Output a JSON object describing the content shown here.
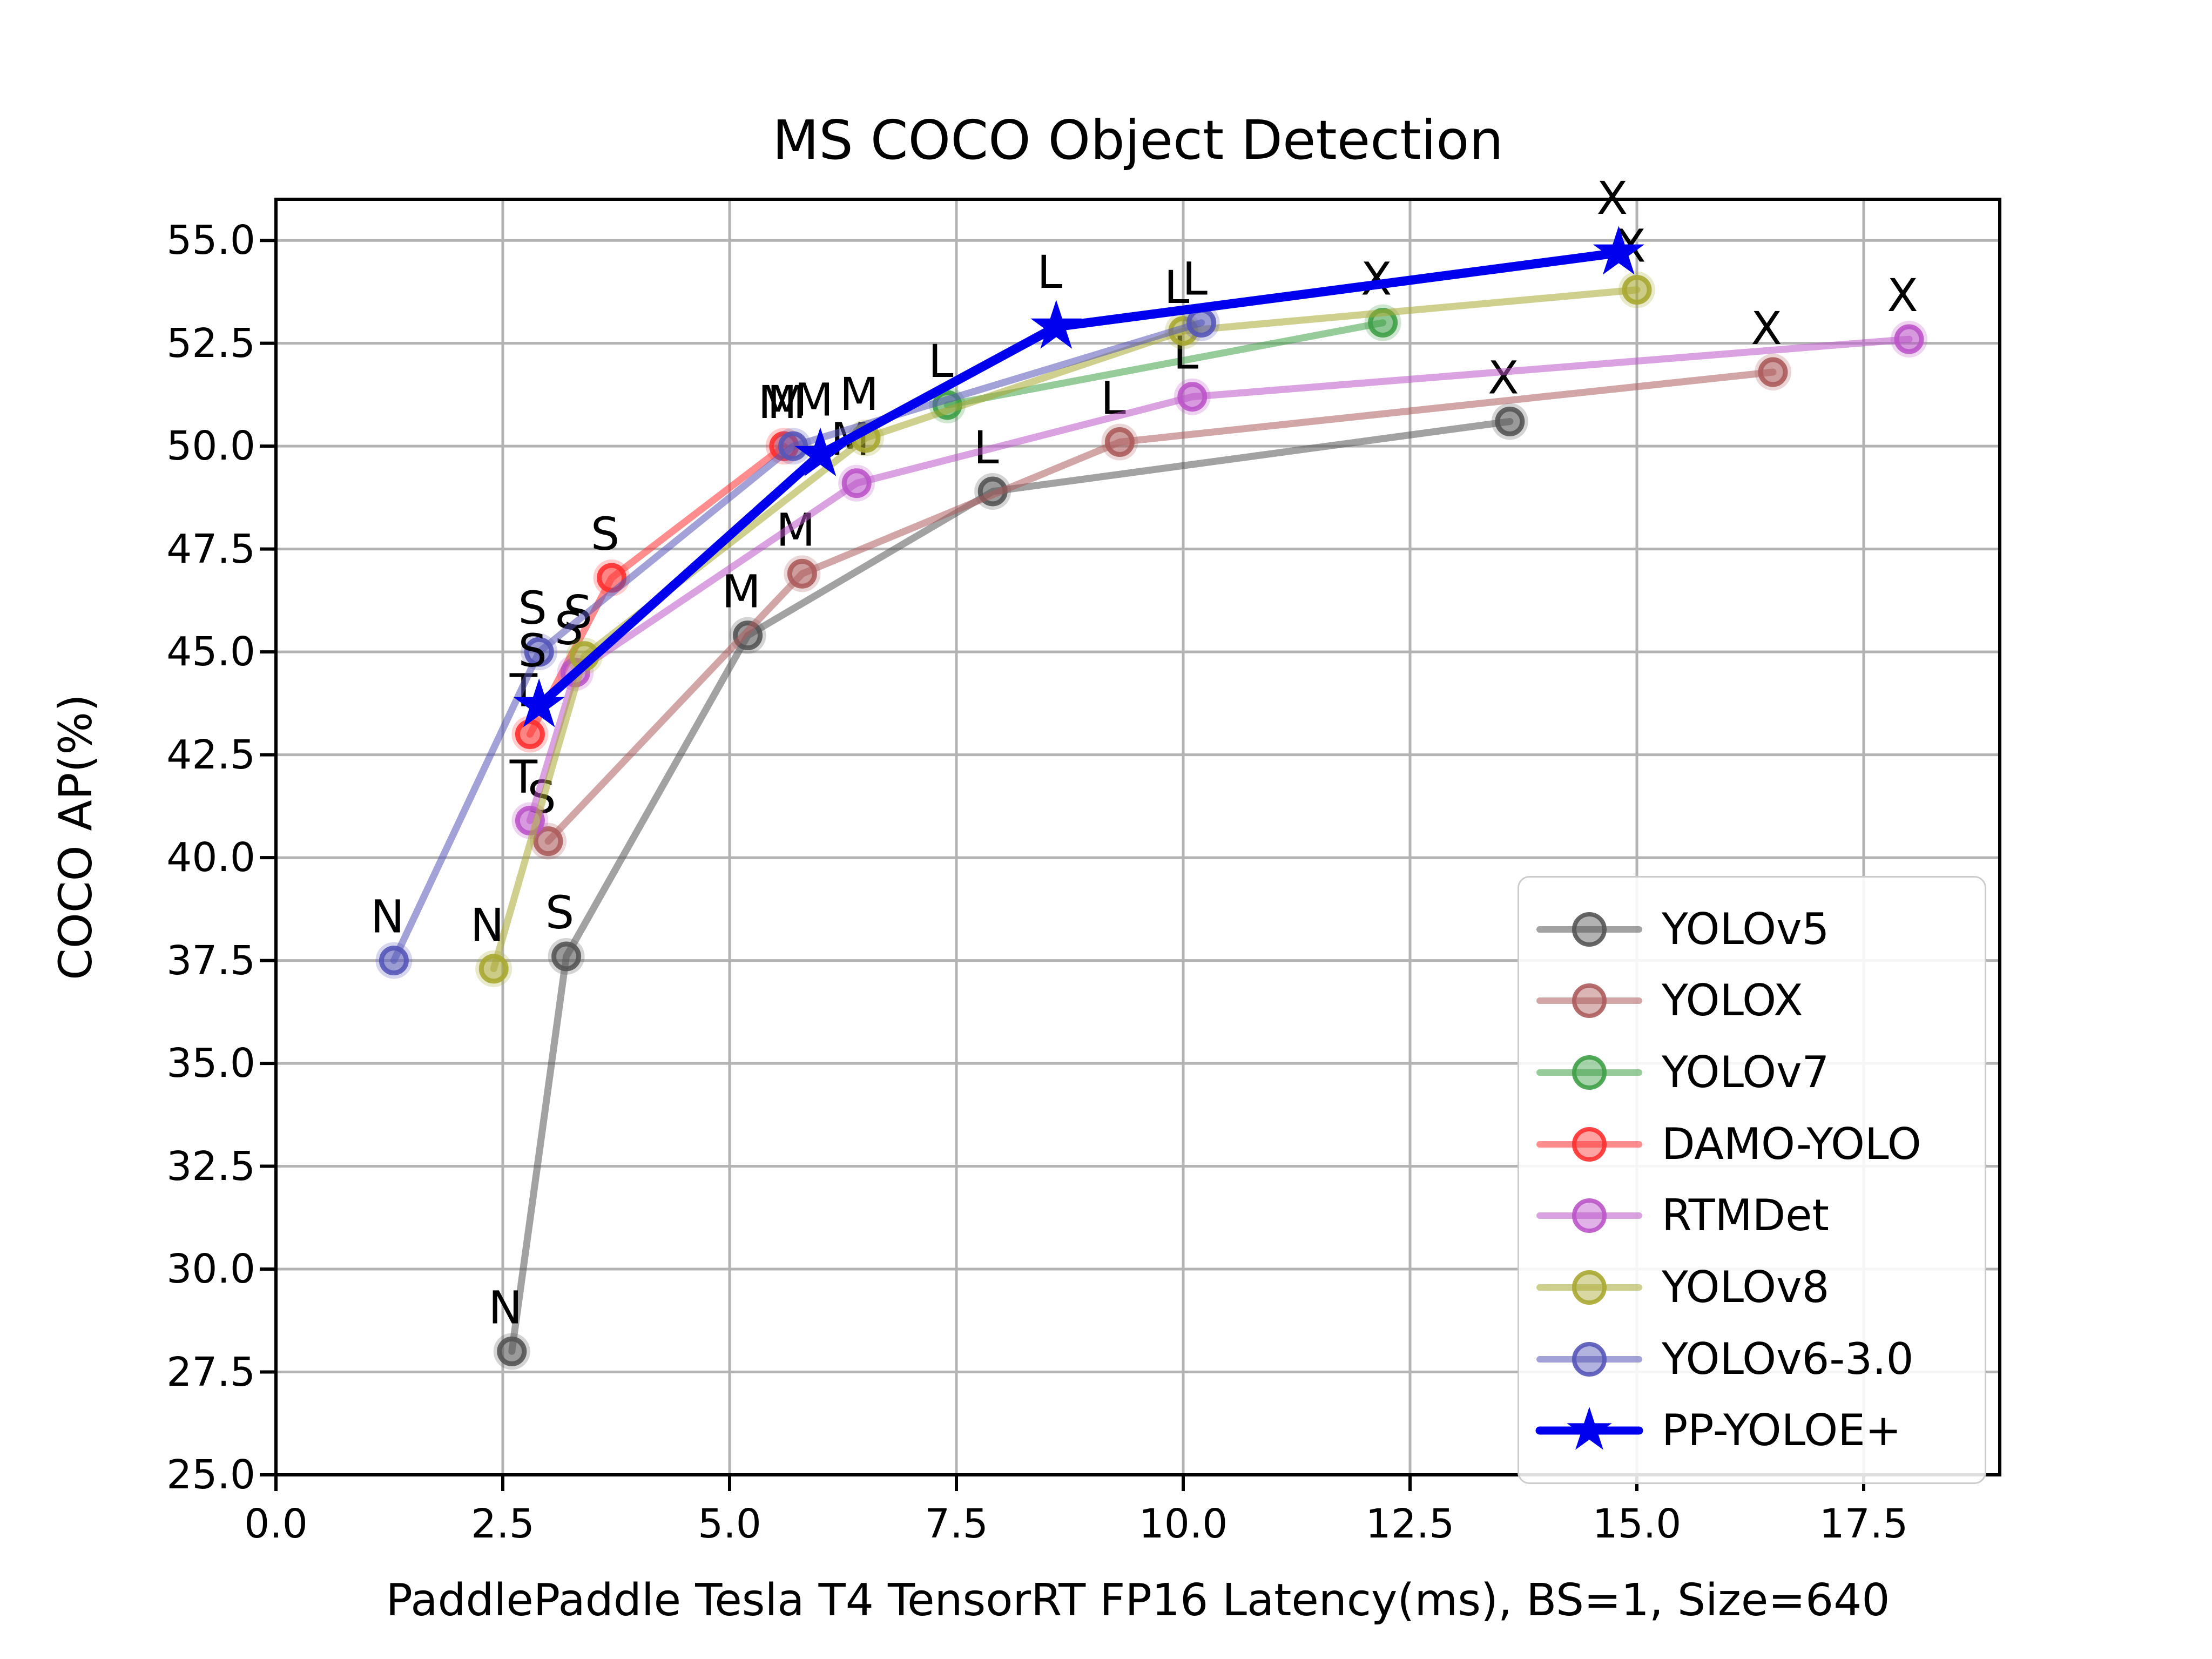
{
  "chart_data": {
    "type": "line",
    "title": "MS COCO Object Detection",
    "xlabel": "PaddlePaddle Tesla T4 TensorRT FP16 Latency(ms), BS=1, Size=640",
    "ylabel": "COCO AP(%)",
    "xlim": [
      0,
      19
    ],
    "ylim": [
      25,
      56
    ],
    "xticks": [
      0.0,
      2.5,
      5.0,
      7.5,
      10.0,
      12.5,
      15.0,
      17.5
    ],
    "yticks": [
      25.0,
      27.5,
      30.0,
      32.5,
      35.0,
      37.5,
      40.0,
      42.5,
      45.0,
      47.5,
      50.0,
      52.5,
      55.0
    ],
    "grid": true,
    "grid_color": "#b3b3b3",
    "legend_position": "lower right",
    "series": [
      {
        "name": "YOLOv5",
        "color": "#555555",
        "marker": "circle",
        "points": [
          {
            "label": "N",
            "x": 2.6,
            "y": 28.0
          },
          {
            "label": "S",
            "x": 3.2,
            "y": 37.6
          },
          {
            "label": "M",
            "x": 5.2,
            "y": 45.4
          },
          {
            "label": "L",
            "x": 7.9,
            "y": 48.9
          },
          {
            "label": "X",
            "x": 13.6,
            "y": 50.6
          }
        ]
      },
      {
        "name": "YOLOX",
        "color": "#ad5c5c",
        "marker": "circle",
        "points": [
          {
            "label": "S",
            "x": 3.0,
            "y": 40.4
          },
          {
            "label": "M",
            "x": 5.8,
            "y": 46.9
          },
          {
            "label": "L",
            "x": 9.3,
            "y": 50.1
          },
          {
            "label": "X",
            "x": 16.5,
            "y": 51.8
          }
        ]
      },
      {
        "name": "YOLOv7",
        "color": "#3fa047",
        "marker": "circle",
        "points": [
          {
            "label": "L",
            "x": 7.4,
            "y": 51.0
          },
          {
            "label": "X",
            "x": 12.2,
            "y": 53.0
          }
        ]
      },
      {
        "name": "DAMO-YOLO",
        "color": "#ff3030",
        "marker": "circle",
        "points": [
          {
            "label": "T",
            "x": 2.8,
            "y": 43.0
          },
          {
            "label": "S",
            "x": 3.7,
            "y": 46.8
          },
          {
            "label": "M",
            "x": 5.6,
            "y": 50.0
          }
        ]
      },
      {
        "name": "RTMDet",
        "color": "#bb55c9",
        "marker": "circle",
        "points": [
          {
            "label": "T",
            "x": 2.8,
            "y": 40.9
          },
          {
            "label": "S",
            "x": 3.3,
            "y": 44.5
          },
          {
            "label": "M",
            "x": 6.4,
            "y": 49.1
          },
          {
            "label": "L",
            "x": 10.1,
            "y": 51.2
          },
          {
            "label": "X",
            "x": 18.0,
            "y": 52.6
          }
        ]
      },
      {
        "name": "YOLOv8",
        "color": "#a8a832",
        "marker": "circle",
        "points": [
          {
            "label": "N",
            "x": 2.4,
            "y": 37.3
          },
          {
            "label": "S",
            "x": 3.4,
            "y": 44.9
          },
          {
            "label": "M",
            "x": 6.5,
            "y": 50.2
          },
          {
            "label": "L",
            "x": 10.0,
            "y": 52.8
          },
          {
            "label": "X",
            "x": 15.0,
            "y": 53.8
          }
        ]
      },
      {
        "name": "YOLOv6-3.0",
        "color": "#5656b8",
        "marker": "circle",
        "points": [
          {
            "label": "N",
            "x": 1.3,
            "y": 37.5
          },
          {
            "label": "S",
            "x": 2.9,
            "y": 45.0
          },
          {
            "label": "M",
            "x": 5.7,
            "y": 50.0
          },
          {
            "label": "L",
            "x": 10.2,
            "y": 53.0
          }
        ]
      },
      {
        "name": "PP-YOLOE+",
        "color": "#0000ee",
        "marker": "star",
        "points": [
          {
            "label": "S",
            "x": 2.9,
            "y": 43.7
          },
          {
            "label": "M",
            "x": 6.0,
            "y": 49.8
          },
          {
            "label": "L",
            "x": 8.6,
            "y": 52.9
          },
          {
            "label": "X",
            "x": 14.8,
            "y": 54.7
          }
        ]
      }
    ]
  }
}
